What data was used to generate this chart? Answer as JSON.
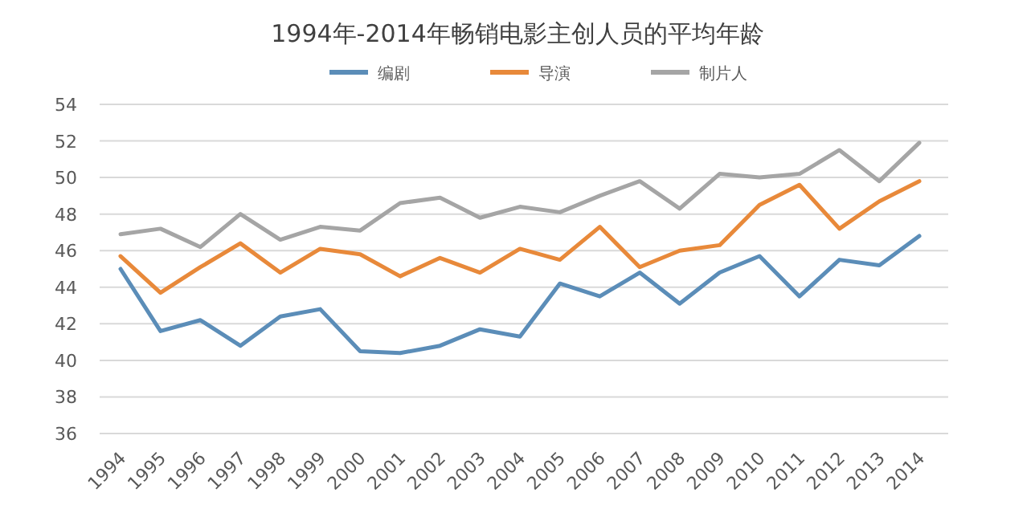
{
  "chart_data": {
    "type": "line",
    "title": "1994年-2014年畅销电影主创人员的平均年龄",
    "categories": [
      "1994",
      "1995",
      "1996",
      "1997",
      "1998",
      "1999",
      "2000",
      "2001",
      "2002",
      "2003",
      "2004",
      "2005",
      "2006",
      "2007",
      "2008",
      "2009",
      "2010",
      "2011",
      "2012",
      "2013",
      "2014"
    ],
    "series": [
      {
        "name": "编剧",
        "color": "#5b8db8",
        "values": [
          45.0,
          41.6,
          42.2,
          40.8,
          42.4,
          42.8,
          40.5,
          40.4,
          40.8,
          41.7,
          41.3,
          44.2,
          43.5,
          44.8,
          43.1,
          44.8,
          45.7,
          43.5,
          45.5,
          45.2,
          46.8
        ]
      },
      {
        "name": "导演",
        "color": "#e8893a",
        "values": [
          45.7,
          43.7,
          45.1,
          46.4,
          44.8,
          46.1,
          45.8,
          44.6,
          45.6,
          44.8,
          46.1,
          45.5,
          47.3,
          45.1,
          46.0,
          46.3,
          48.5,
          49.6,
          47.2,
          48.7,
          49.8
        ]
      },
      {
        "name": "制片人",
        "color": "#a5a5a5",
        "values": [
          46.9,
          47.2,
          46.2,
          48.0,
          46.6,
          47.3,
          47.1,
          48.6,
          48.9,
          47.8,
          48.4,
          48.1,
          49.0,
          49.8,
          48.3,
          50.2,
          50.0,
          50.2,
          51.5,
          49.8,
          51.9
        ]
      }
    ],
    "ylim": [
      36,
      54
    ],
    "yticks": [
      36,
      38,
      40,
      42,
      44,
      46,
      48,
      50,
      52,
      54
    ],
    "grid": "y",
    "legend": "top",
    "marker": "none",
    "line_style": "solid"
  }
}
